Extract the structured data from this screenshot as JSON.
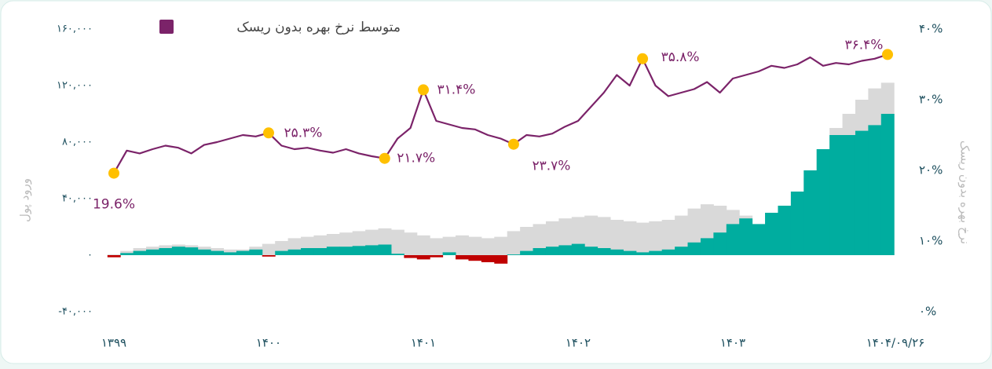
{
  "chart_data": {
    "type": "bar+line",
    "legend": "متوسط نرخ بهره بدون ریسک",
    "ylabel": "ورود پول",
    "y2label": "نرخ بهره بدون ریسک",
    "categories": [
      "۱۳۹۹",
      null,
      null,
      null,
      null,
      null,
      null,
      null,
      null,
      null,
      null,
      null,
      "۱۴۰۰",
      null,
      null,
      null,
      null,
      null,
      null,
      null,
      null,
      null,
      null,
      null,
      "۱۴۰۱",
      null,
      null,
      null,
      null,
      null,
      null,
      null,
      null,
      null,
      null,
      null,
      "۱۴۰۲",
      null,
      null,
      null,
      null,
      null,
      null,
      null,
      null,
      null,
      null,
      null,
      "۱۴۰۳",
      null,
      null,
      null,
      null,
      null,
      null,
      null,
      null,
      null,
      null,
      null,
      "۱۴۰۴/۰۹/۲۶"
    ],
    "ylim": [
      -40000,
      160000
    ],
    "yticks": [
      {
        "value": -40000,
        "label": "-۴۰,۰۰۰"
      },
      {
        "value": 0,
        "label": "۰"
      },
      {
        "value": 40000,
        "label": "۴۰,۰۰۰"
      },
      {
        "value": 80000,
        "label": "۸۰,۰۰۰"
      },
      {
        "value": 120000,
        "label": "۱۲۰,۰۰۰"
      },
      {
        "value": 160000,
        "label": "۱۶۰,۰۰۰"
      }
    ],
    "y2lim": [
      0,
      40
    ],
    "y2ticks": [
      {
        "value": 0,
        "label": "۰%"
      },
      {
        "value": 10,
        "label": "۱۰%"
      },
      {
        "value": 20,
        "label": "۲۰%"
      },
      {
        "value": 30,
        "label": "۳۰%"
      },
      {
        "value": 40,
        "label": "۴۰%"
      }
    ],
    "areas": [
      {
        "color": "#d9d9d9",
        "values": [
          500,
          3000,
          5000,
          6000,
          7000,
          7500,
          7000,
          6000,
          5000,
          4000,
          4000,
          6000,
          8000,
          10000,
          12000,
          13000,
          14000,
          15000,
          16000,
          17000,
          18000,
          19000,
          18000,
          16000,
          14000,
          12000,
          13000,
          14000,
          13000,
          12000,
          13000,
          17000,
          20000,
          22000,
          24000,
          26000,
          27000,
          28000,
          27000,
          25000,
          24000,
          23000,
          24000,
          25000,
          28000,
          33000,
          36000,
          35000,
          32000,
          28000,
          22000,
          28000,
          33000,
          40000,
          55000,
          75000,
          90000,
          100000,
          110000,
          118000,
          122000
        ]
      },
      {
        "color": "#00ad9f",
        "negative_color": "#c00000",
        "values": [
          -1500,
          1500,
          3000,
          4000,
          5000,
          6000,
          5500,
          4000,
          3000,
          2000,
          3000,
          4000,
          -1000,
          3000,
          4000,
          5000,
          5000,
          6000,
          6000,
          6500,
          7000,
          7500,
          1000,
          -2000,
          -3000,
          -1500,
          2000,
          -3000,
          -4000,
          -5000,
          -6000,
          500,
          3000,
          5000,
          6000,
          7000,
          8000,
          6000,
          5000,
          4000,
          3000,
          2000,
          3000,
          4000,
          6000,
          9000,
          12000,
          16000,
          22000,
          26000,
          22000,
          30000,
          35000,
          45000,
          60000,
          75000,
          85000,
          85000,
          88000,
          92000,
          100000
        ]
      }
    ],
    "series": [
      {
        "name": "متوسط نرخ بهره بدون ریسک",
        "color": "#7b2369",
        "axis": "y2",
        "marker_color": "#ffc000",
        "values": [
          19.6,
          22.8,
          22.4,
          23.0,
          23.5,
          23.2,
          22.4,
          23.6,
          24.0,
          24.5,
          25.0,
          24.8,
          25.3,
          23.5,
          23.0,
          23.2,
          22.8,
          22.5,
          23.0,
          22.4,
          22.0,
          21.7,
          24.5,
          26.0,
          31.4,
          27.0,
          26.5,
          26.0,
          25.8,
          25.0,
          24.5,
          23.7,
          25.0,
          24.8,
          25.2,
          26.2,
          27.0,
          29.0,
          31.0,
          33.5,
          32.0,
          35.8,
          32.0,
          30.5,
          31.0,
          31.5,
          32.5,
          31.0,
          33.0,
          33.5,
          34.0,
          34.8,
          34.5,
          35.0,
          36.0,
          34.8,
          35.2,
          35.0,
          35.5,
          35.8,
          36.4
        ],
        "value_labels": [
          "19.6%",
          null,
          null,
          null,
          null,
          null,
          null,
          null,
          null,
          null,
          null,
          null,
          "۲۵.۳%",
          null,
          null,
          null,
          null,
          null,
          null,
          null,
          null,
          "۲۱.۷%",
          null,
          null,
          "۳۱.۴%",
          null,
          null,
          null,
          null,
          null,
          null,
          "۲۳.۷%",
          null,
          null,
          null,
          null,
          null,
          null,
          null,
          null,
          null,
          "۳۵.۸%",
          null,
          null,
          null,
          null,
          null,
          null,
          null,
          null,
          null,
          null,
          null,
          null,
          null,
          null,
          null,
          null,
          null,
          null,
          "۳۶.۴%"
        ]
      }
    ]
  }
}
